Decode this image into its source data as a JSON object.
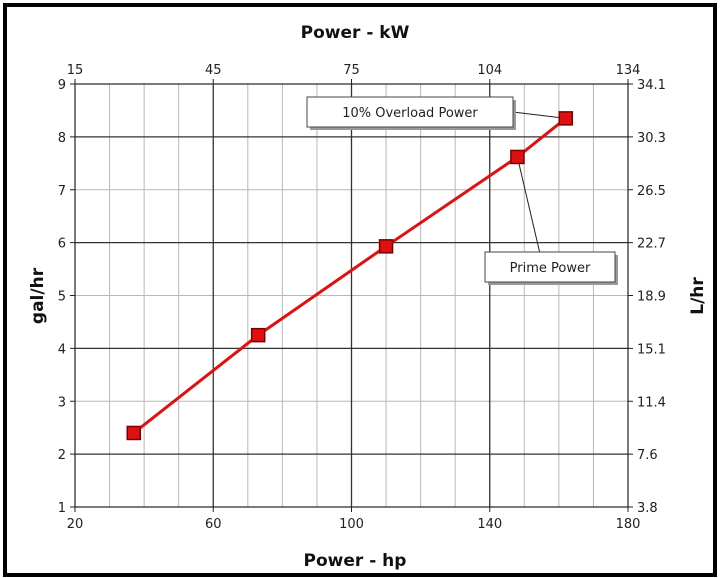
{
  "chart_data": {
    "type": "line",
    "title": "Power - kW",
    "xlabel": "Power - hp",
    "ylabel": "gal/hr",
    "y2label": "L/hr",
    "xlim": [
      20,
      180
    ],
    "ylim": [
      1,
      9
    ],
    "x_ticks": [
      "20",
      "60",
      "100",
      "140",
      "180"
    ],
    "x_top_ticks": [
      "15",
      "45",
      "75",
      "104",
      "134"
    ],
    "y_ticks": [
      "1",
      "2",
      "3",
      "4",
      "5",
      "6",
      "7",
      "8",
      "9"
    ],
    "y2_ticks": [
      "3.8",
      "7.6",
      "11.4",
      "15.1",
      "18.9",
      "22.7",
      "26.5",
      "30.3",
      "34.1"
    ],
    "grid": true,
    "series": [
      {
        "x": [
          37,
          73,
          110,
          148,
          162
        ],
        "y": [
          2.4,
          4.25,
          5.93,
          7.62,
          8.35
        ],
        "color": "#e01010",
        "marker": "square"
      }
    ],
    "annotations": [
      {
        "text": "10% Overload Power",
        "point_index": 4
      },
      {
        "text": "Prime Power",
        "point_index": 3
      }
    ]
  }
}
